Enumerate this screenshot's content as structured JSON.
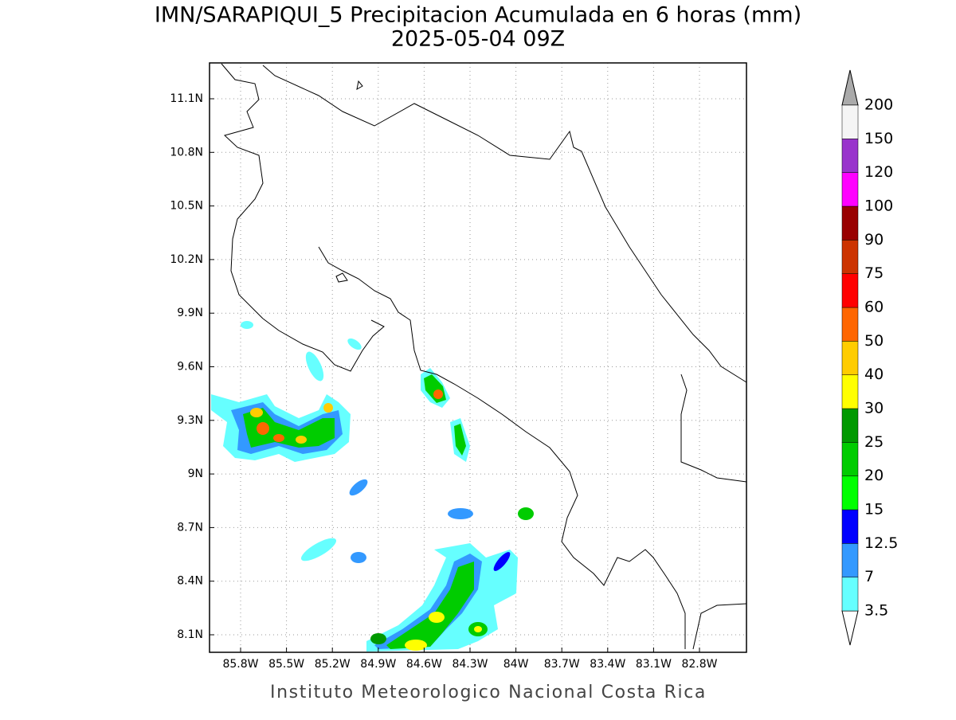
{
  "map": {
    "title": "IMN/SARAPIQUI_5 Precipitacion Acumulada en 6 horas (mm)",
    "subtitle": "2025-05-04 09Z",
    "lat_labels": [
      "11.1N",
      "10.8N",
      "10.5N",
      "10.2N",
      "9.9N",
      "9.6N",
      "9.3N",
      "9N",
      "8.7N",
      "8.4N",
      "8.1N"
    ],
    "lon_labels": [
      "85.8W",
      "85.5W",
      "85.2W",
      "84.9W",
      "84.6W",
      "84.3W",
      "84W",
      "83.7W",
      "83.4W",
      "83.1W",
      "82.8W"
    ],
    "colorbar": {
      "levels": [
        "3.5",
        "7",
        "12.5",
        "15",
        "20",
        "25",
        "30",
        "40",
        "50",
        "60",
        "75",
        "90",
        "100",
        "120",
        "150",
        "200"
      ],
      "colors": [
        "#66ffff",
        "#3399ff",
        "#0000ff",
        "#00ff00",
        "#00cc00",
        "#009900",
        "#ffff00",
        "#ffcc00",
        "#ff6600",
        "#ff0000",
        "#cc3300",
        "#990000",
        "#ff00ff",
        "#9933cc",
        "#f5f5f5"
      ]
    },
    "footer": "Instituto Meteorologico Nacional Costa Rica"
  }
}
